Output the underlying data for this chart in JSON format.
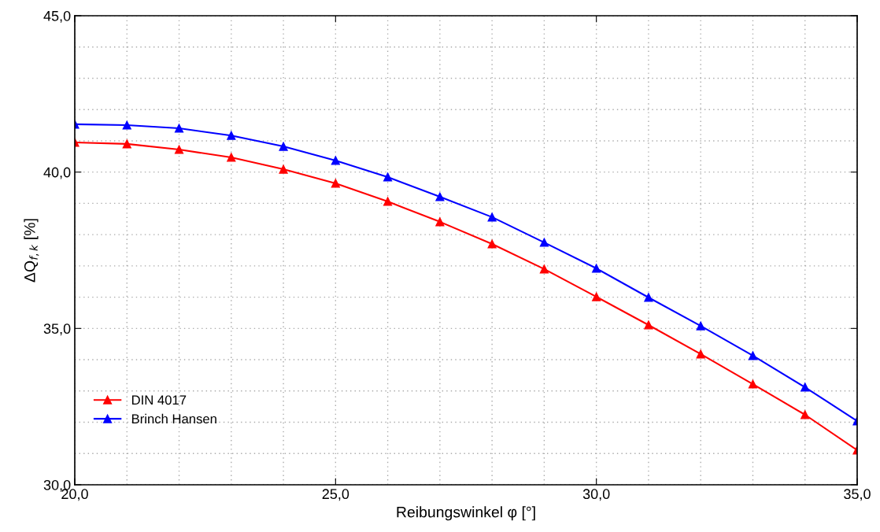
{
  "chart_data": {
    "type": "line",
    "xlabel": "Reibungswinkel φ [°]",
    "ylabel": "ΔQ$_{f,k}$ [%]",
    "x": [
      20,
      21,
      22,
      23,
      24,
      25,
      26,
      27,
      28,
      29,
      30,
      31,
      32,
      33,
      34,
      35
    ],
    "series": [
      {
        "name": "DIN 4017",
        "color": "#ff0000",
        "values": [
          40.95,
          40.9,
          40.72,
          40.47,
          40.09,
          39.64,
          39.06,
          38.41,
          37.7,
          36.9,
          36.01,
          35.11,
          34.18,
          33.22,
          32.24,
          31.11
        ]
      },
      {
        "name": "Brinch Hansen",
        "color": "#0000ff",
        "values": [
          41.53,
          41.5,
          41.4,
          41.17,
          40.82,
          40.37,
          39.84,
          39.21,
          38.56,
          37.75,
          36.92,
          35.99,
          35.08,
          34.13,
          33.12,
          32.04
        ]
      }
    ],
    "xlim": [
      20,
      35
    ],
    "ylim": [
      30,
      45
    ],
    "xticks": [
      {
        "value": 20,
        "label": "20,0"
      },
      {
        "value": 21,
        "label": null
      },
      {
        "value": 22,
        "label": null
      },
      {
        "value": 23,
        "label": null
      },
      {
        "value": 24,
        "label": null
      },
      {
        "value": 25,
        "label": "25,0"
      },
      {
        "value": 26,
        "label": null
      },
      {
        "value": 27,
        "label": null
      },
      {
        "value": 28,
        "label": null
      },
      {
        "value": 29,
        "label": null
      },
      {
        "value": 30,
        "label": "30,0"
      },
      {
        "value": 31,
        "label": null
      },
      {
        "value": 32,
        "label": null
      },
      {
        "value": 33,
        "label": null
      },
      {
        "value": 34,
        "label": null
      },
      {
        "value": 35,
        "label": "35,0"
      }
    ],
    "yticks": [
      {
        "value": 30,
        "label": "30,0"
      },
      {
        "value": 31,
        "label": null
      },
      {
        "value": 32,
        "label": null
      },
      {
        "value": 33,
        "label": null
      },
      {
        "value": 34,
        "label": null
      },
      {
        "value": 35,
        "label": "35,0"
      },
      {
        "value": 36,
        "label": null
      },
      {
        "value": 37,
        "label": null
      },
      {
        "value": 38,
        "label": null
      },
      {
        "value": 39,
        "label": null
      },
      {
        "value": 40,
        "label": "40,0"
      },
      {
        "value": 41,
        "label": null
      },
      {
        "value": 42,
        "label": null
      },
      {
        "value": 43,
        "label": null
      },
      {
        "value": 44,
        "label": null
      },
      {
        "value": 45,
        "label": "45,0"
      }
    ],
    "grid": true,
    "legend": "bottom left",
    "marker": "triangle",
    "line_style": "solid"
  }
}
